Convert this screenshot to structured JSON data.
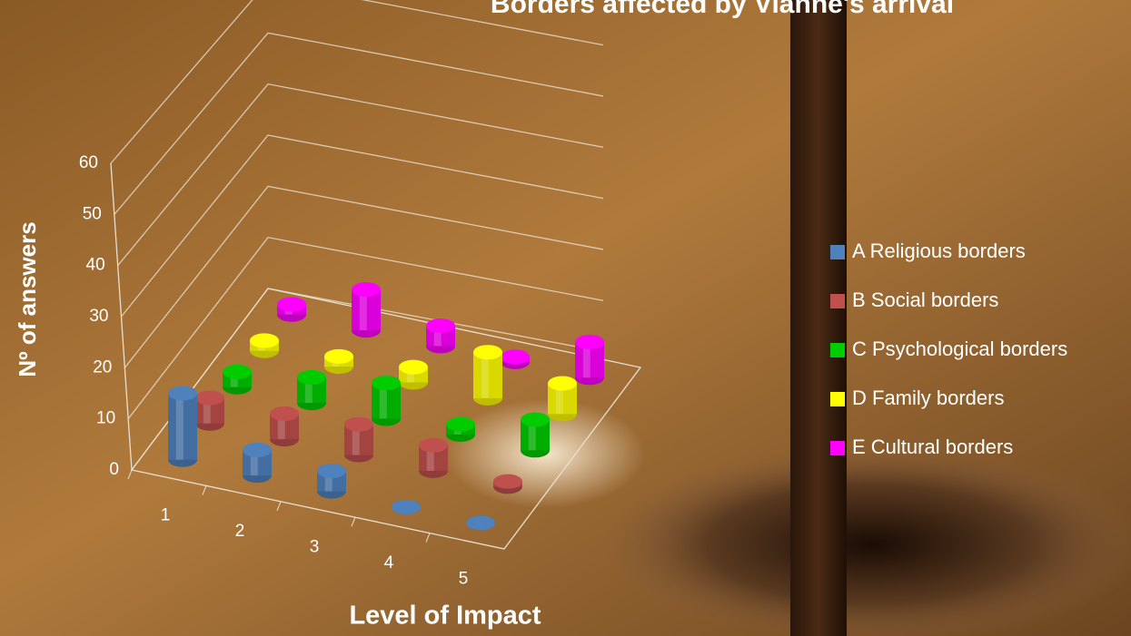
{
  "chart_data": {
    "type": "bar3d",
    "title": "Borders affected by Vianne's arrival",
    "x_label": "Level of Impact",
    "y_label": "Nº of answers",
    "categories": [
      "1",
      "2",
      "3",
      "4",
      "5"
    ],
    "series": [
      {
        "name": "A Religious borders",
        "color": "#4f81bd",
        "values": [
          13,
          5,
          4,
          0,
          0
        ]
      },
      {
        "name": "B Social borders",
        "color": "#c0504d",
        "values": [
          5,
          5,
          6,
          5,
          1
        ]
      },
      {
        "name": "C Psychological borders",
        "color": "#00cc00",
        "values": [
          3,
          5,
          7,
          2,
          6
        ]
      },
      {
        "name": "D Family borders",
        "color": "#ffff00",
        "values": [
          2,
          2,
          3,
          9,
          6
        ]
      },
      {
        "name": "E Cultural borders",
        "color": "#ff00ff",
        "values": [
          2,
          8,
          4,
          1,
          7
        ]
      }
    ],
    "ylim": [
      0,
      60
    ],
    "yticks": [
      0,
      10,
      20,
      30,
      40,
      50,
      60
    ],
    "grid": true,
    "legend": "right"
  }
}
